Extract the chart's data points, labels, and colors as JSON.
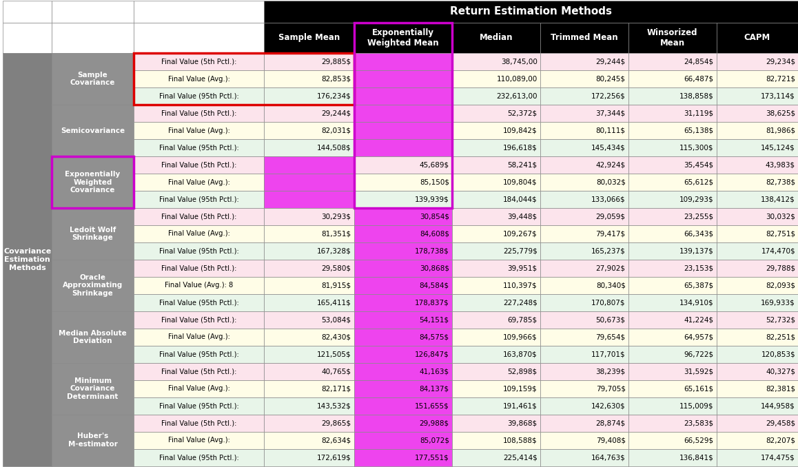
{
  "title": "Return Estimation Methods",
  "figsize": [
    11.58,
    6.78
  ],
  "dpi": 100,
  "col_labels": [
    "Sample Mean",
    "Exponentially\nWeighted Mean",
    "Median",
    "Trimmed Mean",
    "Winsorized\nMean",
    "CAPM"
  ],
  "row_groups": [
    {
      "group_name": "Sample\nCovariance",
      "rows": [
        {
          "label": "Final Value (5th Pctl.):",
          "values": [
            "29,885$",
            "",
            "38,745,00",
            "29,244$",
            "24,854$",
            "29,234$"
          ]
        },
        {
          "label": "Final Value (Avg.):",
          "values": [
            "82,853$",
            "",
            "110,089,00",
            "80,245$",
            "66,487$",
            "82,721$"
          ]
        },
        {
          "label": "Final Value (95th Pctl.):",
          "values": [
            "176,234$",
            "",
            "232,613,00",
            "172,256$",
            "138,858$",
            "173,114$"
          ]
        }
      ]
    },
    {
      "group_name": "Semicovariance",
      "rows": [
        {
          "label": "Final Value (5th Pctl.):",
          "values": [
            "29,244$",
            "",
            "52,372$",
            "37,344$",
            "31,119$",
            "38,625$"
          ]
        },
        {
          "label": "Final Value (Avg.):",
          "values": [
            "82,031$",
            "",
            "109,842$",
            "80,111$",
            "65,138$",
            "81,986$"
          ]
        },
        {
          "label": "Final Value (95th Pctl.):",
          "values": [
            "144,508$",
            "",
            "196,618$",
            "145,434$",
            "115,300$",
            "145,124$"
          ]
        }
      ]
    },
    {
      "group_name": "Exponentially\nWeighted\nCovariance",
      "rows": [
        {
          "label": "Final Value (5th Pctl.):",
          "values": [
            "",
            "45,689$",
            "58,241$",
            "42,924$",
            "35,454$",
            "43,983$"
          ]
        },
        {
          "label": "Final Value (Avg.):",
          "values": [
            "",
            "85,150$",
            "109,804$",
            "80,032$",
            "65,612$",
            "82,738$"
          ]
        },
        {
          "label": "Final Value (95th Pctl.):",
          "values": [
            "",
            "139,939$",
            "184,044$",
            "133,066$",
            "109,293$",
            "138,412$"
          ]
        }
      ]
    },
    {
      "group_name": "Ledoit Wolf\nShrinkage",
      "rows": [
        {
          "label": "Final Value (5th Pctl.):",
          "values": [
            "30,293$",
            "30,854$",
            "39,448$",
            "29,059$",
            "23,255$",
            "30,032$"
          ]
        },
        {
          "label": "Final Value (Avg.):",
          "values": [
            "81,351$",
            "84,608$",
            "109,267$",
            "79,417$",
            "66,343$",
            "82,751$"
          ]
        },
        {
          "label": "Final Value (95th Pctl.):",
          "values": [
            "167,328$",
            "178,738$",
            "225,779$",
            "165,237$",
            "139,137$",
            "174,470$"
          ]
        }
      ]
    },
    {
      "group_name": "Oracle\nApproximating\nShrinkage",
      "rows": [
        {
          "label": "Final Value (5th Pctl.):",
          "values": [
            "29,580$",
            "30,868$",
            "39,951$",
            "27,902$",
            "23,153$",
            "29,788$"
          ]
        },
        {
          "label": "Final Value (Avg.): 8",
          "values": [
            "81,915$",
            "84,584$",
            "110,397$",
            "80,340$",
            "65,387$",
            "82,093$"
          ]
        },
        {
          "label": "Final Value (95th Pctl.):",
          "values": [
            "165,411$",
            "178,837$",
            "227,248$",
            "170,807$",
            "134,910$",
            "169,933$"
          ]
        }
      ]
    },
    {
      "group_name": "Median Absolute\nDeviation",
      "rows": [
        {
          "label": "Final Value (5th Pctl.):",
          "values": [
            "53,084$",
            "54,151$",
            "69,785$",
            "50,673$",
            "41,224$",
            "52,732$"
          ]
        },
        {
          "label": "Final Value (Avg.):",
          "values": [
            "82,430$",
            "84,575$",
            "109,966$",
            "79,654$",
            "64,957$",
            "82,251$"
          ]
        },
        {
          "label": "Final Value (95th Pctl.):",
          "values": [
            "121,505$",
            "126,847$",
            "163,870$",
            "117,701$",
            "96,722$",
            "120,853$"
          ]
        }
      ]
    },
    {
      "group_name": "Minimum\nCovariance\nDeterminant",
      "rows": [
        {
          "label": "Final Value (5th Pctl.):",
          "values": [
            "40,765$",
            "41,163$",
            "52,898$",
            "38,239$",
            "31,592$",
            "40,327$"
          ]
        },
        {
          "label": "Final Value (Avg.):",
          "values": [
            "82,171$",
            "84,137$",
            "109,159$",
            "79,705$",
            "65,161$",
            "82,381$"
          ]
        },
        {
          "label": "Final Value (95th Pctl.):",
          "values": [
            "143,532$",
            "151,655$",
            "191,461$",
            "142,630$",
            "115,009$",
            "144,958$"
          ]
        }
      ]
    },
    {
      "group_name": "Huber's\nM-estimator",
      "rows": [
        {
          "label": "Final Value (5th Pctl.):",
          "values": [
            "29,865$",
            "29,988$",
            "39,868$",
            "28,874$",
            "23,583$",
            "29,458$"
          ]
        },
        {
          "label": "Final Value (Avg.):",
          "values": [
            "82,634$",
            "85,072$",
            "108,588$",
            "79,408$",
            "66,529$",
            "82,207$"
          ]
        },
        {
          "label": "Final Value (95th Pctl.):",
          "values": [
            "172,619$",
            "177,551$",
            "225,414$",
            "164,763$",
            "136,841$",
            "174,475$"
          ]
        }
      ]
    }
  ],
  "row_colors_cycle": [
    "#fce4ec",
    "#fffde7",
    "#e8f5e9"
  ],
  "magenta_bg": "#ee44ee",
  "magenta_border": "#cc00cc",
  "red_border": "#dd0000",
  "header_bg": "#000000",
  "header_fg": "#ffffff",
  "group_header_bg": "#909090",
  "group_header_fg": "#ffffff",
  "cov_label_bg": "#808080",
  "cov_label_fg": "#ffffff",
  "grid_color": "#888888",
  "bg_color": "#ffffff"
}
